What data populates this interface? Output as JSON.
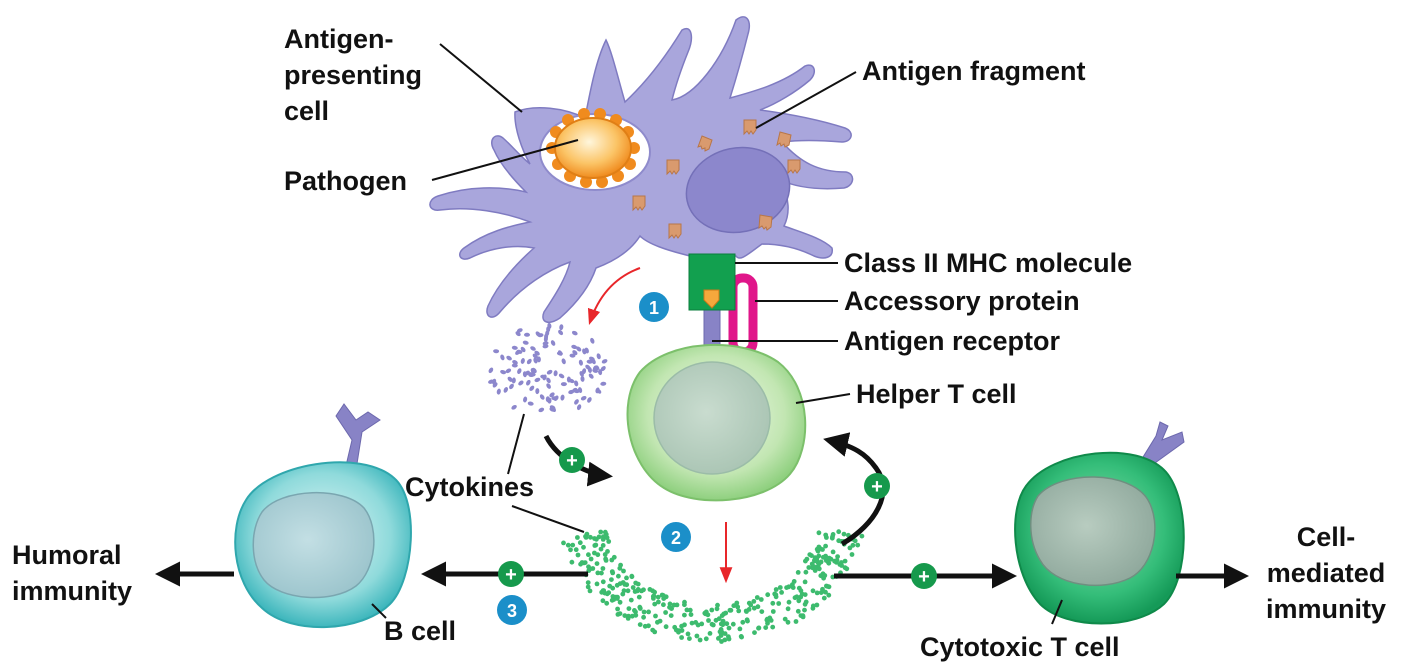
{
  "labels": {
    "antigen_presenting_cell": [
      "Antigen-",
      "presenting",
      "cell"
    ],
    "pathogen": "Pathogen",
    "antigen_fragment": "Antigen fragment",
    "class_ii_mhc": "Class II MHC molecule",
    "accessory_protein": "Accessory protein",
    "antigen_receptor": "Antigen receptor",
    "helper_t_cell": "Helper T cell",
    "cytokines": "Cytokines",
    "b_cell": "B cell",
    "cytotoxic_t_cell": "Cytotoxic T cell",
    "humoral_immunity": [
      "Humoral",
      "immunity"
    ],
    "cell_mediated_immunity": [
      "Cell-",
      "mediated",
      "immunity"
    ]
  },
  "steps": [
    "1",
    "2",
    "3"
  ],
  "plus_sign": "+",
  "colors": {
    "apc_body": "#a9a6dc",
    "apc_nucleus": "#8c87cc",
    "pathogen": "#f6a83c",
    "antigen_fragment": "#d99a6e",
    "mhc": "#12a04f",
    "accessory": "#e0168a",
    "receptor": "#8883c6",
    "helper_t": "#8fd07f",
    "b_cell": "#4cc4c8",
    "cytotoxic_t": "#1db068",
    "step_badge": "#1b8fc9",
    "plus_badge": "#16994c",
    "signal_arrow": "#e8262a"
  }
}
